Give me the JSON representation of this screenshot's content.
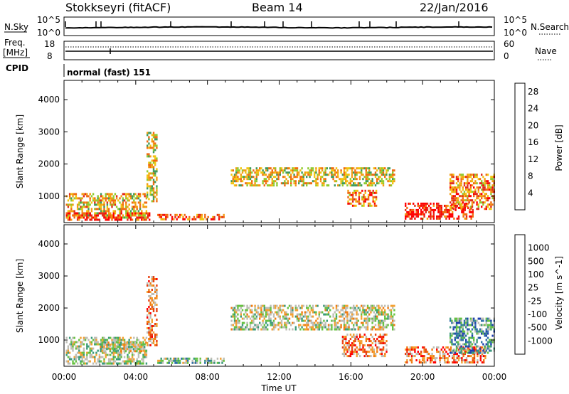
{
  "header": {
    "station": "Stokkseyri (fitACF)",
    "beam": "Beam 14",
    "date": "22/Jan/2016"
  },
  "nsky_panel": {
    "label": "N.Sky",
    "ymax_label": "10^5",
    "ymin_label": "10^0",
    "right_ymax_label": "10^5",
    "right_ymin_label": "10^0",
    "right_label": "N.Search"
  },
  "freq_panel": {
    "label_top": "Freq.",
    "label_units": "[MHz]",
    "ymax_label": "18",
    "ymin_label": "8",
    "right_ymax_label": "60",
    "right_ymin_label": "0",
    "right_label": "Nave"
  },
  "cpid_panel": {
    "label": "CPID",
    "text": "normal (fast) 151"
  },
  "chart_data": [
    {
      "type": "heatmap",
      "title": "",
      "ylabel": "Slant Range [km]",
      "xlabel": "",
      "xlim_hours": [
        0,
        24
      ],
      "ylim": [
        180,
        4600
      ],
      "yticks": [
        1000,
        2000,
        3000,
        4000
      ],
      "colorbar": {
        "label": "Power [dB]",
        "ticks": [
          "4",
          "8",
          "12",
          "16",
          "20",
          "24",
          "28"
        ],
        "colors": [
          "#0000ee",
          "#1e3fb5",
          "#2d7a8c",
          "#3f9a5a",
          "#8fcb2f",
          "#f1c40f",
          "#f39c12",
          "#f06a10",
          "#e22b1a",
          "#ff0000"
        ]
      },
      "regions": [
        {
          "t": [
            0.1,
            4.6
          ],
          "r": [
            300,
            1100
          ],
          "level": 0.6
        },
        {
          "t": [
            0.1,
            3.2
          ],
          "r": [
            250,
            500
          ],
          "level": 0.9
        },
        {
          "t": [
            3.5,
            4.8
          ],
          "r": [
            250,
            500
          ],
          "level": 0.85
        },
        {
          "t": [
            4.6,
            5.2
          ],
          "r": [
            800,
            3000
          ],
          "level": 0.55
        },
        {
          "t": [
            5.2,
            9.0
          ],
          "r": [
            220,
            450
          ],
          "level": 0.8
        },
        {
          "t": [
            9.3,
            18.5
          ],
          "r": [
            1300,
            1900
          ],
          "level": 0.55
        },
        {
          "t": [
            15.8,
            17.5
          ],
          "r": [
            700,
            1200
          ],
          "level": 0.7
        },
        {
          "t": [
            19.0,
            22.8
          ],
          "r": [
            250,
            800
          ],
          "level": 0.9
        },
        {
          "t": [
            21.5,
            24.0
          ],
          "r": [
            600,
            1700
          ],
          "level": 0.7
        }
      ]
    },
    {
      "type": "heatmap",
      "title": "",
      "ylabel": "Slant Range [km]",
      "xlabel": "Time UT",
      "xticks": [
        "00:00",
        "04:00",
        "08:00",
        "12:00",
        "16:00",
        "20:00",
        "00:00"
      ],
      "xlim_hours": [
        0,
        24
      ],
      "ylim": [
        180,
        4600
      ],
      "yticks": [
        1000,
        2000,
        3000,
        4000
      ],
      "colorbar": {
        "label": "Velocity [m s^-1]",
        "ticks": [
          "1000",
          "500",
          "100",
          "25",
          "-25",
          "-100",
          "-500",
          "-1000"
        ],
        "colors": [
          "#1f3faf",
          "#2f6fa8",
          "#3a9a7a",
          "#66c241",
          "#bdbdb5",
          "#bdbdb5",
          "#f3a030",
          "#f07a10",
          "#e84010",
          "#ff0000"
        ]
      },
      "regions": [
        {
          "t": [
            0.1,
            4.6
          ],
          "r": [
            250,
            1100
          ],
          "level": 0.45
        },
        {
          "t": [
            2.0,
            4.6
          ],
          "r": [
            600,
            950
          ],
          "level": 0.5
        },
        {
          "t": [
            4.6,
            5.2
          ],
          "r": [
            800,
            3000
          ],
          "level": 0.7
        },
        {
          "t": [
            5.2,
            9.0
          ],
          "r": [
            220,
            450
          ],
          "level": 0.4
        },
        {
          "t": [
            9.3,
            18.5
          ],
          "r": [
            1300,
            2100
          ],
          "level": 0.5
        },
        {
          "t": [
            15.5,
            18.0
          ],
          "r": [
            500,
            1200
          ],
          "level": 0.75
        },
        {
          "t": [
            19.0,
            23.5
          ],
          "r": [
            250,
            800
          ],
          "level": 0.75
        },
        {
          "t": [
            21.5,
            24.0
          ],
          "r": [
            600,
            1700
          ],
          "level": 0.25
        }
      ]
    }
  ]
}
